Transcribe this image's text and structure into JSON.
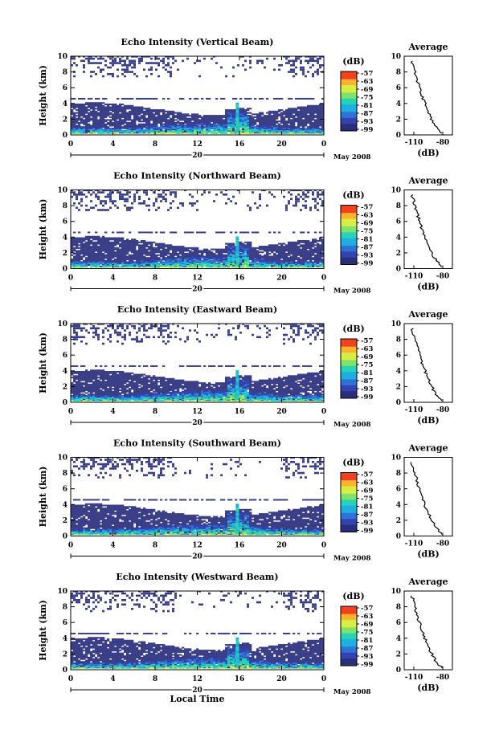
{
  "chart_data": [
    {
      "type": "heatmap",
      "title": "Echo Intensity (Vertical Beam)",
      "ylabel": "Height (km)",
      "xlabel": "",
      "x_ticks": [
        "0",
        "4",
        "8",
        "12",
        "16",
        "20",
        "0"
      ],
      "y_ticks": [
        "0",
        "2",
        "4",
        "6",
        "8",
        "10"
      ],
      "xlim": [
        0,
        24
      ],
      "ylim": [
        0,
        10
      ],
      "date_mark": "20",
      "date_text": "May 2008",
      "colorbar": {
        "unit": "(dB)",
        "ticks": [
          "-57",
          "-63",
          "-69",
          "-75",
          "-81",
          "-87",
          "-93",
          "-99"
        ]
      },
      "profile": {
        "title": "Average",
        "xlabel": "(dB)",
        "x_ticks": [
          "-110",
          "-80"
        ],
        "y_ticks": [
          "0",
          "2",
          "4",
          "6",
          "8",
          "10"
        ],
        "xlim": [
          -120,
          -70
        ],
        "ylim": [
          0,
          10
        ]
      }
    },
    {
      "type": "heatmap",
      "title": "Echo Intensity (Northward Beam)",
      "ylabel": "Height (km)",
      "xlabel": "",
      "x_ticks": [
        "0",
        "4",
        "8",
        "12",
        "16",
        "20",
        "0"
      ],
      "y_ticks": [
        "0",
        "2",
        "4",
        "6",
        "8",
        "10"
      ],
      "xlim": [
        0,
        24
      ],
      "ylim": [
        0,
        10
      ],
      "date_mark": "20",
      "date_text": "May 2008",
      "colorbar": {
        "unit": "(dB)",
        "ticks": [
          "-57",
          "-63",
          "-69",
          "-75",
          "-81",
          "-87",
          "-93",
          "-99"
        ]
      },
      "profile": {
        "title": "Average",
        "xlabel": "(dB)",
        "x_ticks": [
          "-110",
          "-80"
        ],
        "y_ticks": [
          "0",
          "2",
          "4",
          "6",
          "8",
          "10"
        ],
        "xlim": [
          -120,
          -70
        ],
        "ylim": [
          0,
          10
        ]
      }
    },
    {
      "type": "heatmap",
      "title": "Echo Intensity (Eastward Beam)",
      "ylabel": "Height (km)",
      "xlabel": "",
      "x_ticks": [
        "0",
        "4",
        "8",
        "12",
        "16",
        "20",
        "0"
      ],
      "y_ticks": [
        "0",
        "2",
        "4",
        "6",
        "8",
        "10"
      ],
      "xlim": [
        0,
        24
      ],
      "ylim": [
        0,
        10
      ],
      "date_mark": "20",
      "date_text": "May 2008",
      "colorbar": {
        "unit": "(dB)",
        "ticks": [
          "-57",
          "-63",
          "-69",
          "-75",
          "-81",
          "-87",
          "-93",
          "-99"
        ]
      },
      "profile": {
        "title": "Average",
        "xlabel": "(dB)",
        "x_ticks": [
          "-110",
          "-80"
        ],
        "y_ticks": [
          "0",
          "2",
          "4",
          "6",
          "8",
          "10"
        ],
        "xlim": [
          -120,
          -70
        ],
        "ylim": [
          0,
          10
        ]
      }
    },
    {
      "type": "heatmap",
      "title": "Echo Intensity (Southward Beam)",
      "ylabel": "Height (km)",
      "xlabel": "",
      "x_ticks": [
        "0",
        "4",
        "8",
        "12",
        "16",
        "20",
        "0"
      ],
      "y_ticks": [
        "0",
        "2",
        "4",
        "6",
        "8",
        "10"
      ],
      "xlim": [
        0,
        24
      ],
      "ylim": [
        0,
        10
      ],
      "date_mark": "20",
      "date_text": "May 2008",
      "colorbar": {
        "unit": "(dB)",
        "ticks": [
          "-57",
          "-63",
          "-69",
          "-75",
          "-81",
          "-87",
          "-93",
          "-99"
        ]
      },
      "profile": {
        "title": "Average",
        "xlabel": "(dB)",
        "x_ticks": [
          "-110",
          "-80"
        ],
        "y_ticks": [
          "0",
          "2",
          "4",
          "6",
          "8",
          "10"
        ],
        "xlim": [
          -120,
          -70
        ],
        "ylim": [
          0,
          10
        ]
      }
    },
    {
      "type": "heatmap",
      "title": "Echo Intensity (Westward Beam)",
      "ylabel": "Height (km)",
      "xlabel": "Local Time",
      "x_ticks": [
        "0",
        "4",
        "8",
        "12",
        "16",
        "20",
        "0"
      ],
      "y_ticks": [
        "0",
        "2",
        "4",
        "6",
        "8",
        "10"
      ],
      "xlim": [
        0,
        24
      ],
      "ylim": [
        0,
        10
      ],
      "date_mark": "20",
      "date_text": "May 2008",
      "colorbar": {
        "unit": "(dB)",
        "ticks": [
          "-57",
          "-63",
          "-69",
          "-75",
          "-81",
          "-87",
          "-93",
          "-99"
        ]
      },
      "profile": {
        "title": "Average",
        "xlabel": "(dB)",
        "x_ticks": [
          "-110",
          "-80"
        ],
        "y_ticks": [
          "0",
          "2",
          "4",
          "6",
          "8",
          "10"
        ],
        "xlim": [
          -120,
          -70
        ],
        "ylim": [
          0,
          10
        ]
      }
    }
  ],
  "colors": {
    "colormap": [
      "#2b2f7a",
      "#3343b0",
      "#2f72d8",
      "#1faee0",
      "#27d3b8",
      "#7fe36a",
      "#d8ee45",
      "#ffb22e",
      "#f0421f"
    ],
    "low_echo": "#3a3e86",
    "axis": "#000000"
  }
}
